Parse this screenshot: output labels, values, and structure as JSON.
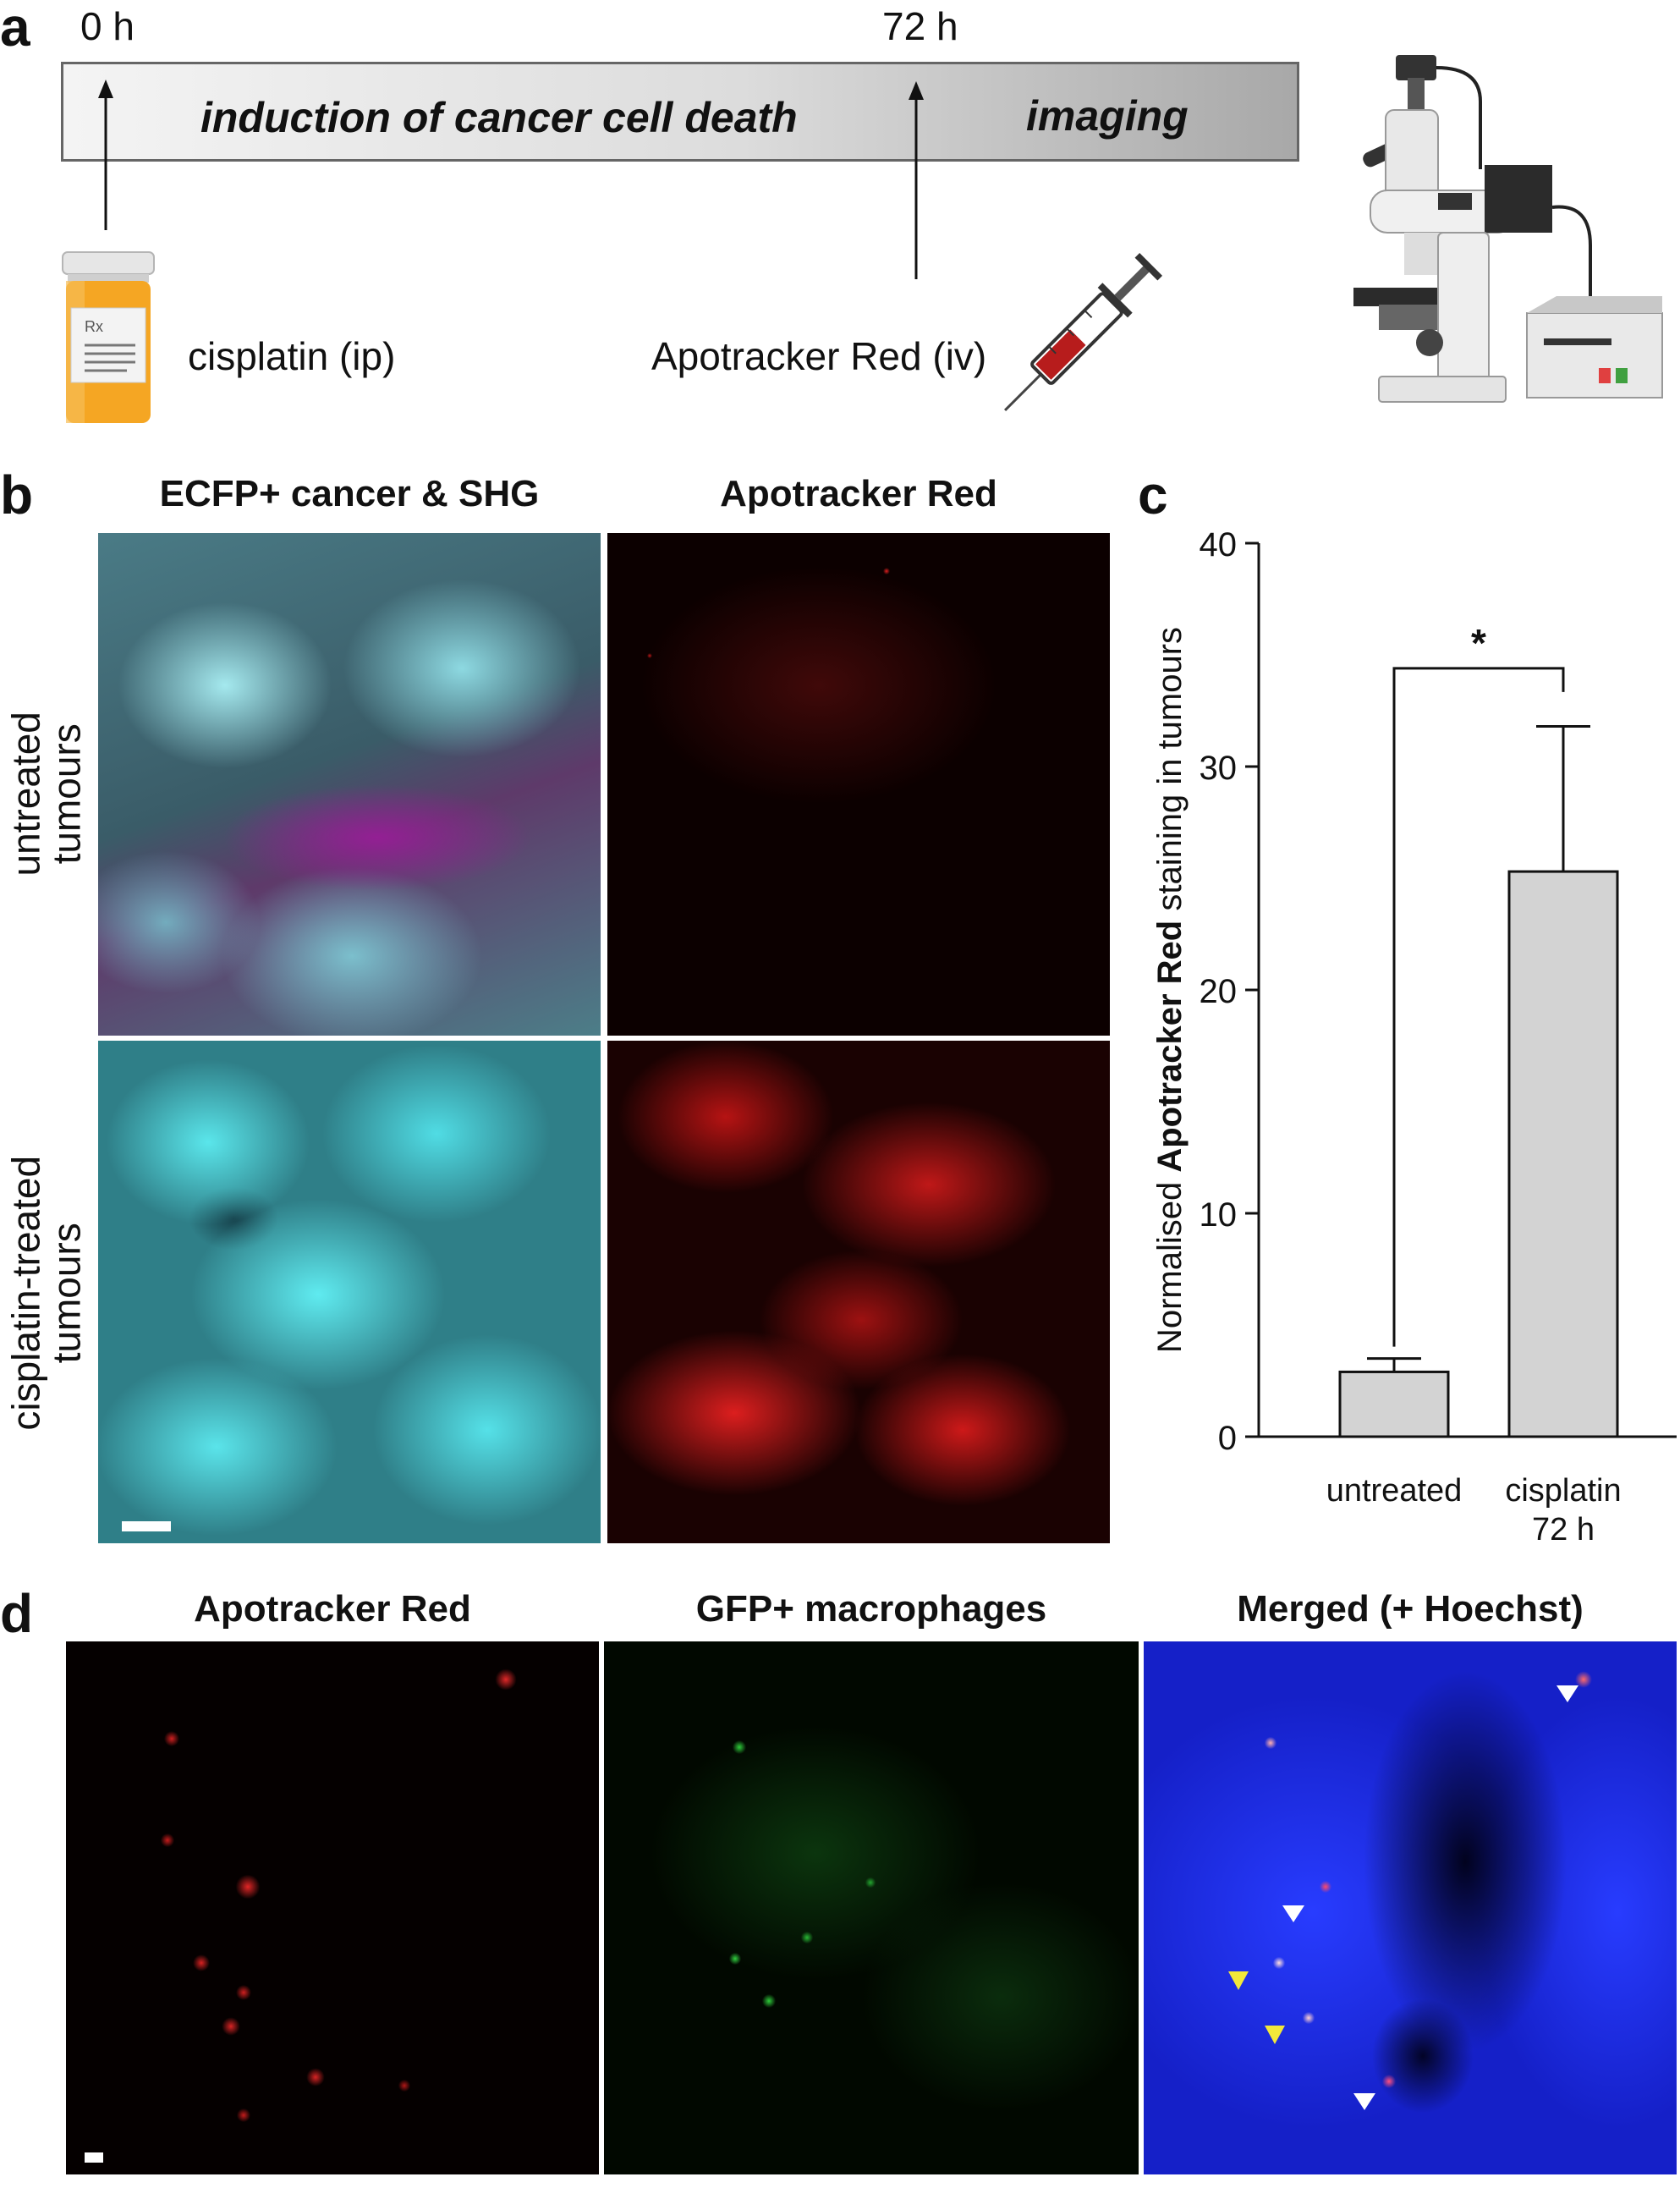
{
  "panel_a": {
    "letter": "a",
    "time_start": "0 h",
    "time_end": "72 h",
    "bar_phase1": "induction of cancer cell death",
    "bar_phase2": "imaging",
    "label_cisplatin": "cisplatin (ip)",
    "label_apotracker": "Apotracker Red (iv)",
    "icons": [
      "pill-bottle-icon",
      "syringe-icon",
      "microscope-icon"
    ]
  },
  "panel_b": {
    "letter": "b",
    "col1_header": "ECFP+ cancer & SHG",
    "col2_header": "Apotracker Red",
    "row1_label_line1": "untreated",
    "row1_label_line2": "tumours",
    "row2_label_line1": "cisplatin-treated",
    "row2_label_line2": "tumours",
    "colors": {
      "ecfp": "#38e0e6",
      "shg": "#c03cc8",
      "apotracker": "#e0201c"
    }
  },
  "panel_c": {
    "letter": "c",
    "significance": "*"
  },
  "chart_data": {
    "type": "bar",
    "categories": [
      "untreated",
      "cisplatin 72 h"
    ],
    "category_lines": [
      [
        "untreated"
      ],
      [
        "cisplatin",
        "72 h"
      ]
    ],
    "values": [
      2.9,
      25.3
    ],
    "error_upper": [
      3.5,
      31.8
    ],
    "ylabel_pre": "Normalised ",
    "ylabel_bold": "Apotracker Red",
    "ylabel_post": " staining in tumours",
    "ylim": [
      0,
      40
    ],
    "yticks": [
      0,
      10,
      20,
      30,
      40
    ],
    "bar_color": "#d3d3d3",
    "grid": false
  },
  "panel_d": {
    "letter": "d",
    "col1_header": "Apotracker Red",
    "col2_header": "GFP+ macrophages",
    "col3_header": "Merged (+ Hoechst)",
    "colors": {
      "apotracker": "#e0201c",
      "gfp": "#2ecc3a",
      "hoechst": "#1520e8",
      "arrow_white": "#ffffff",
      "arrow_yellow": "#f2e83a"
    }
  }
}
